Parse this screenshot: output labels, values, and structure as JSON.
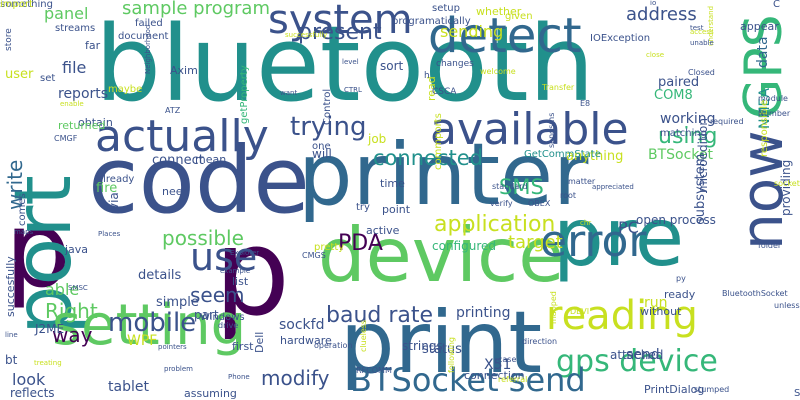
{
  "palette": {
    "dark_purple": "#440154",
    "indigo": "#3b528b",
    "blue": "#31688e",
    "teal": "#21908c",
    "green": "#35b779",
    "lime": "#5ec962",
    "yellow": "#c8e020"
  },
  "words": [
    {
      "text": "bluetooth",
      "color": "#21908c",
      "vertical": false
    },
    {
      "text": "code",
      "color": "#3b528b",
      "vertical": false
    },
    {
      "text": "printer",
      "color": "#31688e",
      "vertical": false
    },
    {
      "text": "p",
      "color": "#440154",
      "vertical": false
    },
    {
      "text": "p",
      "color": "#440154",
      "vertical": false
    },
    {
      "text": "device",
      "color": "#5ec962",
      "vertical": false
    },
    {
      "text": "print",
      "color": "#31688e",
      "vertical": false
    },
    {
      "text": "pre",
      "color": "#21908c",
      "vertical": false
    },
    {
      "text": "port",
      "color": "#21908c",
      "vertical": true
    },
    {
      "text": "setting",
      "color": "#5ec962",
      "vertical": false
    },
    {
      "text": "actually",
      "color": "#3b528b",
      "vertical": false
    },
    {
      "text": "available",
      "color": "#3b528b",
      "vertical": false
    },
    {
      "text": "detect",
      "color": "#31688e",
      "vertical": false
    },
    {
      "text": "error",
      "color": "#31688e",
      "vertical": false
    },
    {
      "text": "reading",
      "color": "#c8e020",
      "vertical": false
    },
    {
      "text": "gps device",
      "color": "#35b779",
      "vertical": false
    },
    {
      "text": "BTSocket send",
      "color": "#31688e",
      "vertical": false
    },
    {
      "text": "now",
      "color": "#3b528b",
      "vertical": true
    },
    {
      "text": "GPS",
      "color": "#35b779",
      "vertical": true
    },
    {
      "text": "system",
      "color": "#3b528b",
      "vertical": false
    },
    {
      "text": "use",
      "color": "#3b528b",
      "vertical": false
    },
    {
      "text": "mobile",
      "color": "#3b528b",
      "vertical": false
    },
    {
      "text": "trying",
      "color": "#3b528b",
      "vertical": false
    },
    {
      "text": "using",
      "color": "#35b779",
      "vertical": false
    },
    {
      "text": "application",
      "color": "#c8e020",
      "vertical": false
    },
    {
      "text": "present",
      "color": "#3b528b",
      "vertical": false
    },
    {
      "text": "baud rate",
      "color": "#3b528b",
      "vertical": false
    },
    {
      "text": "PDA",
      "color": "#440154",
      "vertical": false
    },
    {
      "text": "connected",
      "color": "#21908c",
      "vertical": false
    },
    {
      "text": "SMS",
      "color": "#35b779",
      "vertical": false
    },
    {
      "text": "modify",
      "color": "#3b528b",
      "vertical": false
    },
    {
      "text": "write",
      "color": "#31688e",
      "vertical": true
    },
    {
      "text": "seem",
      "color": "#3b528b",
      "vertical": false
    },
    {
      "text": "Right",
      "color": "#5ec962",
      "vertical": false
    },
    {
      "text": "way",
      "color": "#440154",
      "vertical": false
    },
    {
      "text": "possible",
      "color": "#5ec962",
      "vertical": false
    },
    {
      "text": "target",
      "color": "#c8e020",
      "vertical": false
    },
    {
      "text": "sample program",
      "color": "#5ec962",
      "vertical": false
    },
    {
      "text": "address",
      "color": "#3b528b",
      "vertical": false
    },
    {
      "text": "sending",
      "color": "#c8e020",
      "vertical": false
    },
    {
      "text": "able",
      "color": "#5ec962",
      "vertical": false
    },
    {
      "text": "look",
      "color": "#3b528b",
      "vertical": false
    },
    {
      "text": "tablet",
      "color": "#3b528b",
      "vertical": false
    },
    {
      "text": "sockfd",
      "color": "#3b528b",
      "vertical": false
    },
    {
      "text": "printing",
      "color": "#3b528b",
      "vertical": false
    },
    {
      "text": "BTSocket",
      "color": "#5ec962",
      "vertical": false
    },
    {
      "text": "working",
      "color": "#3b528b",
      "vertical": false
    },
    {
      "text": "panel",
      "color": "#5ec962",
      "vertical": false
    },
    {
      "text": "data",
      "color": "#31688e",
      "vertical": true
    },
    {
      "text": "NMEA",
      "color": "#21908c",
      "vertical": true
    },
    {
      "text": "file",
      "color": "#3b528b",
      "vertical": false
    },
    {
      "text": "reports",
      "color": "#3b528b",
      "vertical": false
    },
    {
      "text": "anything",
      "color": "#c8e020",
      "vertical": false
    },
    {
      "text": "open process",
      "color": "#3b528b",
      "vertical": false
    },
    {
      "text": "PC",
      "color": "#3b528b",
      "vertical": false
    },
    {
      "text": "WPF",
      "color": "#c8e020",
      "vertical": false
    },
    {
      "text": "send",
      "color": "#3b528b",
      "vertical": false
    },
    {
      "text": "X51",
      "color": "#3b528b",
      "vertical": false
    },
    {
      "text": "configured",
      "color": "#35b779",
      "vertical": false
    },
    {
      "text": "will",
      "color": "#3b528b",
      "vertical": false
    },
    {
      "text": "fire",
      "color": "#5ec962",
      "vertical": false
    },
    {
      "text": "connect",
      "color": "#3b528b",
      "vertical": false
    },
    {
      "text": "mean",
      "color": "#3b528b",
      "vertical": false
    },
    {
      "text": "need",
      "color": "#3b528b",
      "vertical": false
    },
    {
      "text": "details",
      "color": "#3b528b",
      "vertical": false
    },
    {
      "text": "simple",
      "color": "#3b528b",
      "vertical": false
    },
    {
      "text": "part",
      "color": "#3b528b",
      "vertical": false
    },
    {
      "text": "list",
      "color": "#3b528b",
      "vertical": false
    },
    {
      "text": "hardware",
      "color": "#3b528b",
      "vertical": false
    },
    {
      "text": "status",
      "color": "#3b528b",
      "vertical": false
    },
    {
      "text": "strings",
      "color": "#3b528b",
      "vertical": false
    },
    {
      "text": "first",
      "color": "#3b528b",
      "vertical": false
    },
    {
      "text": "attached",
      "color": "#3b528b",
      "vertical": false
    },
    {
      "text": "PrintDialog",
      "color": "#3b528b",
      "vertical": false
    },
    {
      "text": "connection",
      "color": "#3b528b",
      "vertical": false
    },
    {
      "text": "reflects",
      "color": "#3b528b",
      "vertical": false
    },
    {
      "text": "assuming",
      "color": "#3b528b",
      "vertical": false
    },
    {
      "text": "run",
      "color": "#c8e020",
      "vertical": false
    },
    {
      "text": "ready",
      "color": "#3b528b",
      "vertical": false
    },
    {
      "text": "without",
      "color": "#3b528b",
      "vertical": false
    },
    {
      "text": "paired",
      "color": "#3b528b",
      "vertical": false
    },
    {
      "text": "COM8",
      "color": "#35b779",
      "vertical": false
    },
    {
      "text": "subsystem",
      "color": "#3b528b",
      "vertical": true
    },
    {
      "text": "microedition",
      "color": "#3b528b",
      "vertical": true
    },
    {
      "text": "appear",
      "color": "#3b528b",
      "vertical": false
    },
    {
      "text": "providing",
      "color": "#3b528b",
      "vertical": true
    },
    {
      "text": "job",
      "color": "#c8e020",
      "vertical": false
    },
    {
      "text": "time",
      "color": "#3b528b",
      "vertical": false
    },
    {
      "text": "point",
      "color": "#3b528b",
      "vertical": false
    },
    {
      "text": "try",
      "color": "#3b528b",
      "vertical": false
    },
    {
      "text": "active",
      "color": "#3b528b",
      "vertical": false
    },
    {
      "text": "pretty",
      "color": "#c8e020",
      "vertical": false
    },
    {
      "text": "Windows",
      "color": "#3b528b",
      "vertical": false
    },
    {
      "text": "Dell",
      "color": "#3b528b",
      "vertical": true
    },
    {
      "text": "J2ME",
      "color": "#3b528b",
      "vertical": false
    },
    {
      "text": "bt",
      "color": "#3b528b",
      "vertical": false
    },
    {
      "text": "java",
      "color": "#3b528b",
      "vertical": false
    },
    {
      "text": "already",
      "color": "#3b528b",
      "vertical": false
    },
    {
      "text": "via",
      "color": "#3b528b",
      "vertical": true
    },
    {
      "text": "comes",
      "color": "#3b528b",
      "vertical": true
    },
    {
      "text": "succesfully",
      "color": "#3b528b",
      "vertical": true
    },
    {
      "text": "user",
      "color": "#c8e020",
      "vertical": false
    },
    {
      "text": "store",
      "color": "#3b528b",
      "vertical": true
    },
    {
      "text": "streams",
      "color": "#3b528b",
      "vertical": false
    },
    {
      "text": "set",
      "color": "#3b528b",
      "vertical": false
    },
    {
      "text": "far",
      "color": "#3b528b",
      "vertical": false
    },
    {
      "text": "document",
      "color": "#3b528b",
      "vertical": false
    },
    {
      "text": "Axim",
      "color": "#3b528b",
      "vertical": false
    },
    {
      "text": "maybe",
      "color": "#c8e020",
      "vertical": false
    },
    {
      "text": "obtain",
      "color": "#3b528b",
      "vertical": false
    },
    {
      "text": "returned",
      "color": "#5ec962",
      "vertical": false
    },
    {
      "text": "sort",
      "color": "#3b528b",
      "vertical": false
    },
    {
      "text": "read",
      "color": "#c8e020",
      "vertical": true
    },
    {
      "text": "one",
      "color": "#3b528b",
      "vertical": false
    },
    {
      "text": "whether",
      "color": "#c8e020",
      "vertical": false
    },
    {
      "text": "programatically",
      "color": "#3b528b",
      "vertical": false
    },
    {
      "text": "setup",
      "color": "#3b528b",
      "vertical": false
    },
    {
      "text": "given",
      "color": "#c8e020",
      "vertical": false
    },
    {
      "text": "IOException",
      "color": "#3b528b",
      "vertical": false
    },
    {
      "text": "responsible",
      "color": "#c8e020",
      "vertical": true
    },
    {
      "text": "Control",
      "color": "#3b528b",
      "vertical": true
    },
    {
      "text": "getProperty",
      "color": "#35b779",
      "vertical": true
    },
    {
      "text": "commports",
      "color": "#c8e020",
      "vertical": true
    },
    {
      "text": "GetCommState",
      "color": "#21908c",
      "vertical": false
    },
    {
      "text": "matching",
      "color": "#3b528b",
      "vertical": false
    },
    {
      "text": "failed",
      "color": "#3b528b",
      "vertical": false
    },
    {
      "text": "C",
      "color": "#3b528b",
      "vertical": false
    },
    {
      "text": "S",
      "color": "#3b528b",
      "vertical": false
    },
    {
      "text": "h",
      "color": "#3b528b",
      "vertical": false
    },
    {
      "text": "CSCA",
      "color": "#3b528b",
      "vertical": false
    },
    {
      "text": "changes",
      "color": "#3b528b",
      "vertical": false
    },
    {
      "text": "welcome",
      "color": "#c8e020",
      "vertical": false
    },
    {
      "text": "level",
      "color": "#3b528b",
      "vertical": false
    },
    {
      "text": "ATZ",
      "color": "#3b528b",
      "vertical": false
    },
    {
      "text": "CMGF",
      "color": "#3b528b",
      "vertical": false
    },
    {
      "text": "CMGS",
      "color": "#3b528b",
      "vertical": false
    },
    {
      "text": "RFCOMM",
      "color": "#3b528b",
      "vertical": false
    },
    {
      "text": "BluetoothSocket",
      "color": "#3b528b",
      "vertical": false
    },
    {
      "text": "Closed",
      "color": "#3b528b",
      "vertical": false
    },
    {
      "text": "module",
      "color": "#3b528b",
      "vertical": false
    },
    {
      "text": "Number",
      "color": "#3b528b",
      "vertical": false
    },
    {
      "text": "required",
      "color": "#3b528b",
      "vertical": false
    },
    {
      "text": "folder",
      "color": "#3b528b",
      "vertical": false
    },
    {
      "text": "py",
      "color": "#3b528b",
      "vertical": false
    },
    {
      "text": "unless",
      "color": "#3b528b",
      "vertical": false
    },
    {
      "text": "stumped",
      "color": "#3b528b",
      "vertical": false
    },
    {
      "text": "matter",
      "color": "#3b528b",
      "vertical": false
    },
    {
      "text": "root",
      "color": "#3b528b",
      "vertical": false
    },
    {
      "text": "verify",
      "color": "#3b528b",
      "vertical": false
    },
    {
      "text": "standard",
      "color": "#3b528b",
      "vertical": false
    },
    {
      "text": "OBEX",
      "color": "#3b528b",
      "vertical": false
    },
    {
      "text": "Transfer",
      "color": "#c8e020",
      "vertical": false
    },
    {
      "text": "appreciated",
      "color": "#3b528b",
      "vertical": false
    },
    {
      "text": "sendsms",
      "color": "#3b528b",
      "vertical": true
    },
    {
      "text": "E8",
      "color": "#3b528b",
      "vertical": false
    },
    {
      "text": "clueless",
      "color": "#c8e020",
      "vertical": true
    },
    {
      "text": "following",
      "color": "#c8e020",
      "vertical": true
    },
    {
      "text": "case",
      "color": "#3b528b",
      "vertical": false
    },
    {
      "text": "referral",
      "color": "#c8e020",
      "vertical": false
    },
    {
      "text": "direction",
      "color": "#3b528b",
      "vertical": false
    },
    {
      "text": "DEVI",
      "color": "#c8e020",
      "vertical": false
    },
    {
      "text": "mapped",
      "color": "#c8e020",
      "vertical": true
    },
    {
      "text": "chr",
      "color": "#c8e020",
      "vertical": false
    },
    {
      "text": "socket",
      "color": "#c8e020",
      "vertical": false
    },
    {
      "text": "operation",
      "color": "#3b528b",
      "vertical": false
    },
    {
      "text": "drive",
      "color": "#3b528b",
      "vertical": false
    },
    {
      "text": "Phone",
      "color": "#3b528b",
      "vertical": false
    },
    {
      "text": "pointers",
      "color": "#3b528b",
      "vertical": false
    },
    {
      "text": "problem",
      "color": "#3b528b",
      "vertical": false
    },
    {
      "text": "SMSC",
      "color": "#3b528b",
      "vertical": false
    },
    {
      "text": "line",
      "color": "#3b528b",
      "vertical": false
    },
    {
      "text": "maps",
      "color": "#3b528b",
      "vertical": false
    },
    {
      "text": "Explorer",
      "color": "#3b528b",
      "vertical": false
    },
    {
      "text": "example",
      "color": "#3b528b",
      "vertical": false
    },
    {
      "text": "Places",
      "color": "#3b528b",
      "vertical": false
    },
    {
      "text": "enable",
      "color": "#c8e020",
      "vertical": false
    },
    {
      "text": "successfully",
      "color": "#c8e020",
      "vertical": false
    },
    {
      "text": "want",
      "color": "#3b528b",
      "vertical": false
    },
    {
      "text": "Neighborhood",
      "color": "#3b528b",
      "vertical": true
    },
    {
      "text": "CTRL",
      "color": "#3b528b",
      "vertical": false
    },
    {
      "text": "treating",
      "color": "#c8e020",
      "vertical": false
    },
    {
      "text": "close",
      "color": "#c8e020",
      "vertical": false
    },
    {
      "text": "io",
      "color": "#3b528b",
      "vertical": false
    },
    {
      "text": "understand",
      "color": "#c8e020",
      "vertical": true
    },
    {
      "text": "access",
      "color": "#c8e020",
      "vertical": false
    },
    {
      "text": "test",
      "color": "#3b528b",
      "vertical": false
    },
    {
      "text": "unable",
      "color": "#3b528b",
      "vertical": false
    },
    {
      "text": "something",
      "color": "#3b528b",
      "vertical": false
    },
    {
      "text": "import",
      "color": "#c8e020",
      "vertical": false
    }
  ]
}
